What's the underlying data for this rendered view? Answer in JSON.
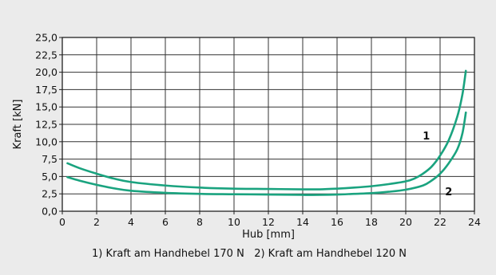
{
  "chart_data": {
    "type": "line",
    "title": "",
    "xlabel": "Hub [mm]",
    "ylabel": "Kraft [kN]",
    "xlim": [
      0,
      24
    ],
    "ylim": [
      0,
      25
    ],
    "x_ticks": [
      0,
      2,
      4,
      6,
      8,
      10,
      12,
      14,
      16,
      18,
      20,
      22,
      24
    ],
    "y_ticks": [
      0,
      2.5,
      5,
      7.5,
      10,
      12.5,
      15,
      17.5,
      20,
      22.5,
      25
    ],
    "x_tick_labels": [
      "0",
      "2",
      "4",
      "6",
      "8",
      "10",
      "12",
      "14",
      "16",
      "18",
      "20",
      "22",
      "24"
    ],
    "y_tick_labels": [
      "0,0",
      "2,5",
      "5,0",
      "7,5",
      "10,0",
      "12,5",
      "15,0",
      "17,5",
      "20,0",
      "22,5",
      "25,0"
    ],
    "grid": true,
    "line_color": "#1aa37f",
    "series": [
      {
        "name": "1",
        "points": [
          [
            0.3,
            6.9
          ],
          [
            1,
            6.2
          ],
          [
            2,
            5.4
          ],
          [
            3,
            4.7
          ],
          [
            4,
            4.2
          ],
          [
            6,
            3.7
          ],
          [
            8,
            3.4
          ],
          [
            10,
            3.25
          ],
          [
            12,
            3.2
          ],
          [
            14,
            3.15
          ],
          [
            15,
            3.15
          ],
          [
            16,
            3.25
          ],
          [
            17,
            3.4
          ],
          [
            18,
            3.6
          ],
          [
            19,
            3.9
          ],
          [
            20,
            4.3
          ],
          [
            20.5,
            4.7
          ],
          [
            21,
            5.4
          ],
          [
            21.5,
            6.4
          ],
          [
            22,
            8
          ],
          [
            22.5,
            10.2
          ],
          [
            23,
            13.6
          ],
          [
            23.3,
            16.8
          ],
          [
            23.5,
            20.2
          ]
        ],
        "label_at": [
          21.2,
          10.3
        ]
      },
      {
        "name": "2",
        "points": [
          [
            0.3,
            4.9
          ],
          [
            1,
            4.4
          ],
          [
            2,
            3.8
          ],
          [
            3,
            3.3
          ],
          [
            4,
            2.95
          ],
          [
            6,
            2.65
          ],
          [
            8,
            2.5
          ],
          [
            10,
            2.45
          ],
          [
            12,
            2.4
          ],
          [
            14,
            2.35
          ],
          [
            15,
            2.35
          ],
          [
            16,
            2.4
          ],
          [
            17,
            2.5
          ],
          [
            18,
            2.6
          ],
          [
            19,
            2.8
          ],
          [
            20,
            3.1
          ],
          [
            21,
            3.7
          ],
          [
            21.5,
            4.4
          ],
          [
            22,
            5.4
          ],
          [
            22.5,
            6.9
          ],
          [
            23,
            8.9
          ],
          [
            23.3,
            11.2
          ],
          [
            23.5,
            14.2
          ]
        ],
        "label_at": [
          22.5,
          2.3
        ]
      }
    ],
    "legend_text": "1) Kraft am Handhebel 170 N   2) Kraft am Handhebel 120 N"
  }
}
